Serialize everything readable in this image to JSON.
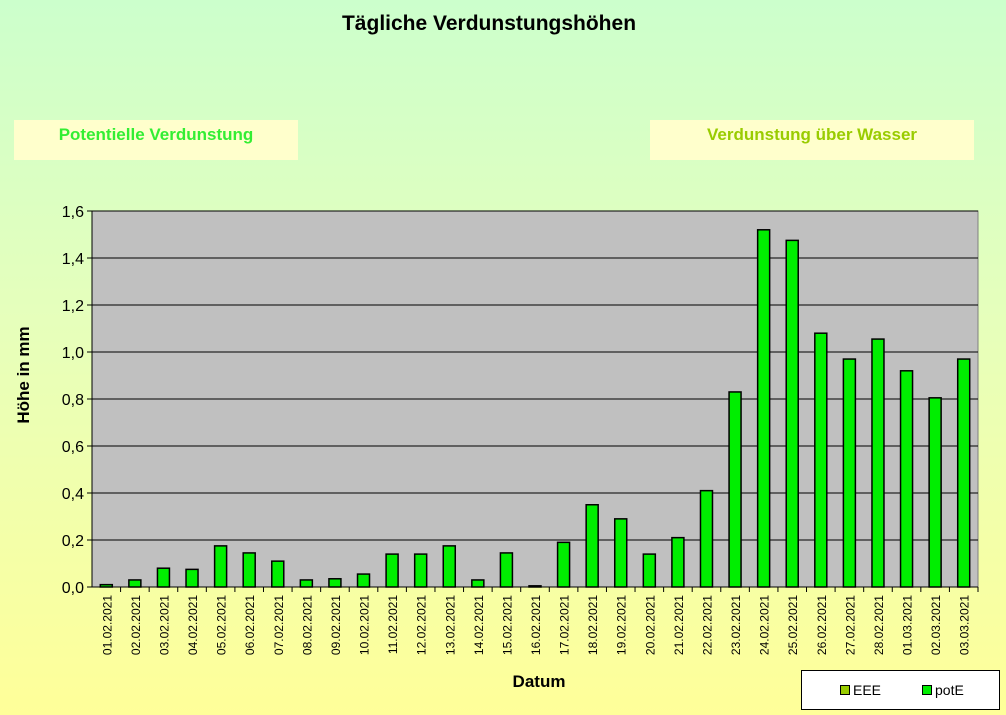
{
  "chart_data": {
    "type": "bar",
    "title": "Tägliche Verdunstungshöhen",
    "xlabel": "Datum",
    "ylabel": "Höhe in mm",
    "ylim": [
      0,
      1.6
    ],
    "yticks": [
      "0,0",
      "0,2",
      "0,4",
      "0,6",
      "0,8",
      "1,0",
      "1,2",
      "1,4",
      "1,6"
    ],
    "grid": true,
    "legend_position": "bottom-right",
    "categories": [
      "01.02.2021",
      "02.02.2021",
      "03.02.2021",
      "04.02.2021",
      "05.02.2021",
      "06.02.2021",
      "07.02.2021",
      "08.02.2021",
      "09.02.2021",
      "10.02.2021",
      "11.02.2021",
      "12.02.2021",
      "13.02.2021",
      "14.02.2021",
      "15.02.2021",
      "16.02.2021",
      "17.02.2021",
      "18.02.2021",
      "19.02.2021",
      "20.02.2021",
      "21.02.2021",
      "22.02.2021",
      "23.02.2021",
      "24.02.2021",
      "25.02.2021",
      "26.02.2021",
      "27.02.2021",
      "28.02.2021",
      "01.03.2021",
      "02.03.2021",
      "03.03.2021"
    ],
    "series": [
      {
        "name": "EEE",
        "color": "#99cc00",
        "values": [
          0,
          0,
          0,
          0,
          0,
          0,
          0,
          0,
          0,
          0,
          0,
          0,
          0,
          0,
          0,
          0,
          0,
          0,
          0,
          0,
          0,
          0,
          0,
          0,
          0,
          0,
          0,
          0,
          0,
          0,
          0
        ]
      },
      {
        "name": "potE",
        "color": "#00ee00",
        "values": [
          0.01,
          0.03,
          0.08,
          0.075,
          0.175,
          0.145,
          0.11,
          0.03,
          0.035,
          0.055,
          0.14,
          0.14,
          0.175,
          0.03,
          0.145,
          0.005,
          0.19,
          0.35,
          0.29,
          0.14,
          0.21,
          0.41,
          0.83,
          1.52,
          1.475,
          1.08,
          0.97,
          1.055,
          0.92,
          0.805,
          0.97
        ]
      }
    ],
    "plot_background": "#c0c0c0"
  },
  "boxes": {
    "left_label": "Potentielle Verdunstung",
    "right_label": "Verdunstung über Wasser",
    "left_color": "#33ee33",
    "right_color": "#99cc00"
  }
}
